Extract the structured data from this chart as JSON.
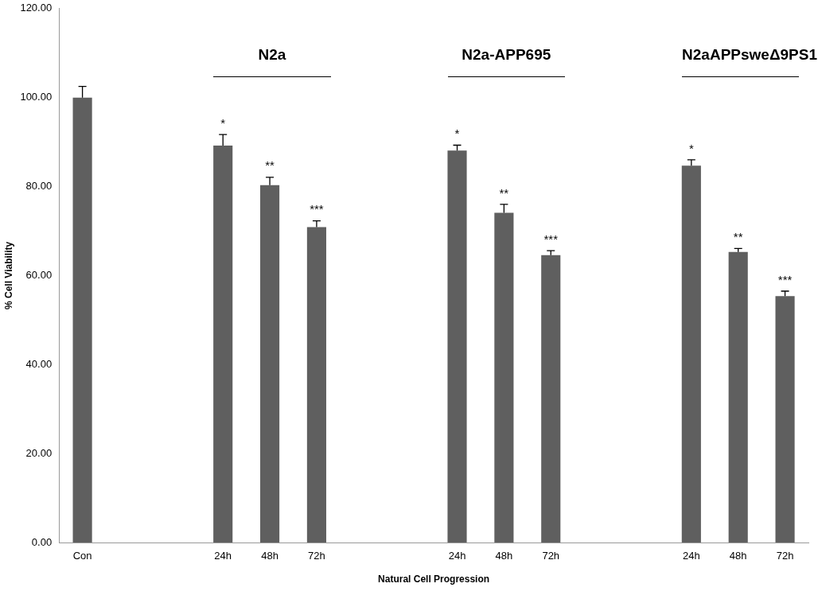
{
  "chart_data": {
    "type": "bar",
    "xlabel": "Natural Cell Progression",
    "ylabel": "% Cell Viability",
    "categories": [
      "Con",
      null,
      null,
      "24h",
      "48h",
      "72h",
      null,
      null,
      "24h",
      "48h",
      "72h",
      null,
      null,
      "24h",
      "48h",
      "72h"
    ],
    "values": [
      100,
      null,
      null,
      89.2,
      80.3,
      70.9,
      null,
      null,
      88.1,
      74.1,
      64.6,
      null,
      null,
      84.7,
      65.3,
      55.4
    ],
    "errors": [
      [
        100,
        102.5
      ],
      null,
      null,
      [
        89.2,
        91.7
      ],
      [
        80.3,
        82.1
      ],
      [
        70.9,
        72.3
      ],
      null,
      null,
      [
        88.1,
        89.3
      ],
      [
        74.1,
        76.0
      ],
      [
        64.6,
        65.6
      ],
      null,
      null,
      [
        84.7,
        86.0
      ],
      [
        65.3,
        66.1
      ],
      [
        55.4,
        56.5
      ]
    ],
    "value_labels": [
      null,
      null,
      null,
      "*",
      "**",
      "***",
      null,
      null,
      "*",
      "**",
      "***",
      null,
      null,
      "*",
      "**",
      "***"
    ],
    "color": "#5f5f5f",
    "ylim": [
      0,
      120
    ],
    "yticks": [
      {
        "value": 0,
        "label": "0.00"
      },
      {
        "value": 20,
        "label": "20.00"
      },
      {
        "value": 40,
        "label": "40.00"
      },
      {
        "value": 60,
        "label": "60.00"
      },
      {
        "value": 80,
        "label": "80.00"
      },
      {
        "value": 100,
        "label": "100.00"
      },
      {
        "value": 120,
        "label": "120.00"
      }
    ],
    "grid": false,
    "legend": false,
    "annotations": [
      "N2a",
      "N2a-APP695",
      "N2aAPPsweΔ9PS1"
    ]
  }
}
